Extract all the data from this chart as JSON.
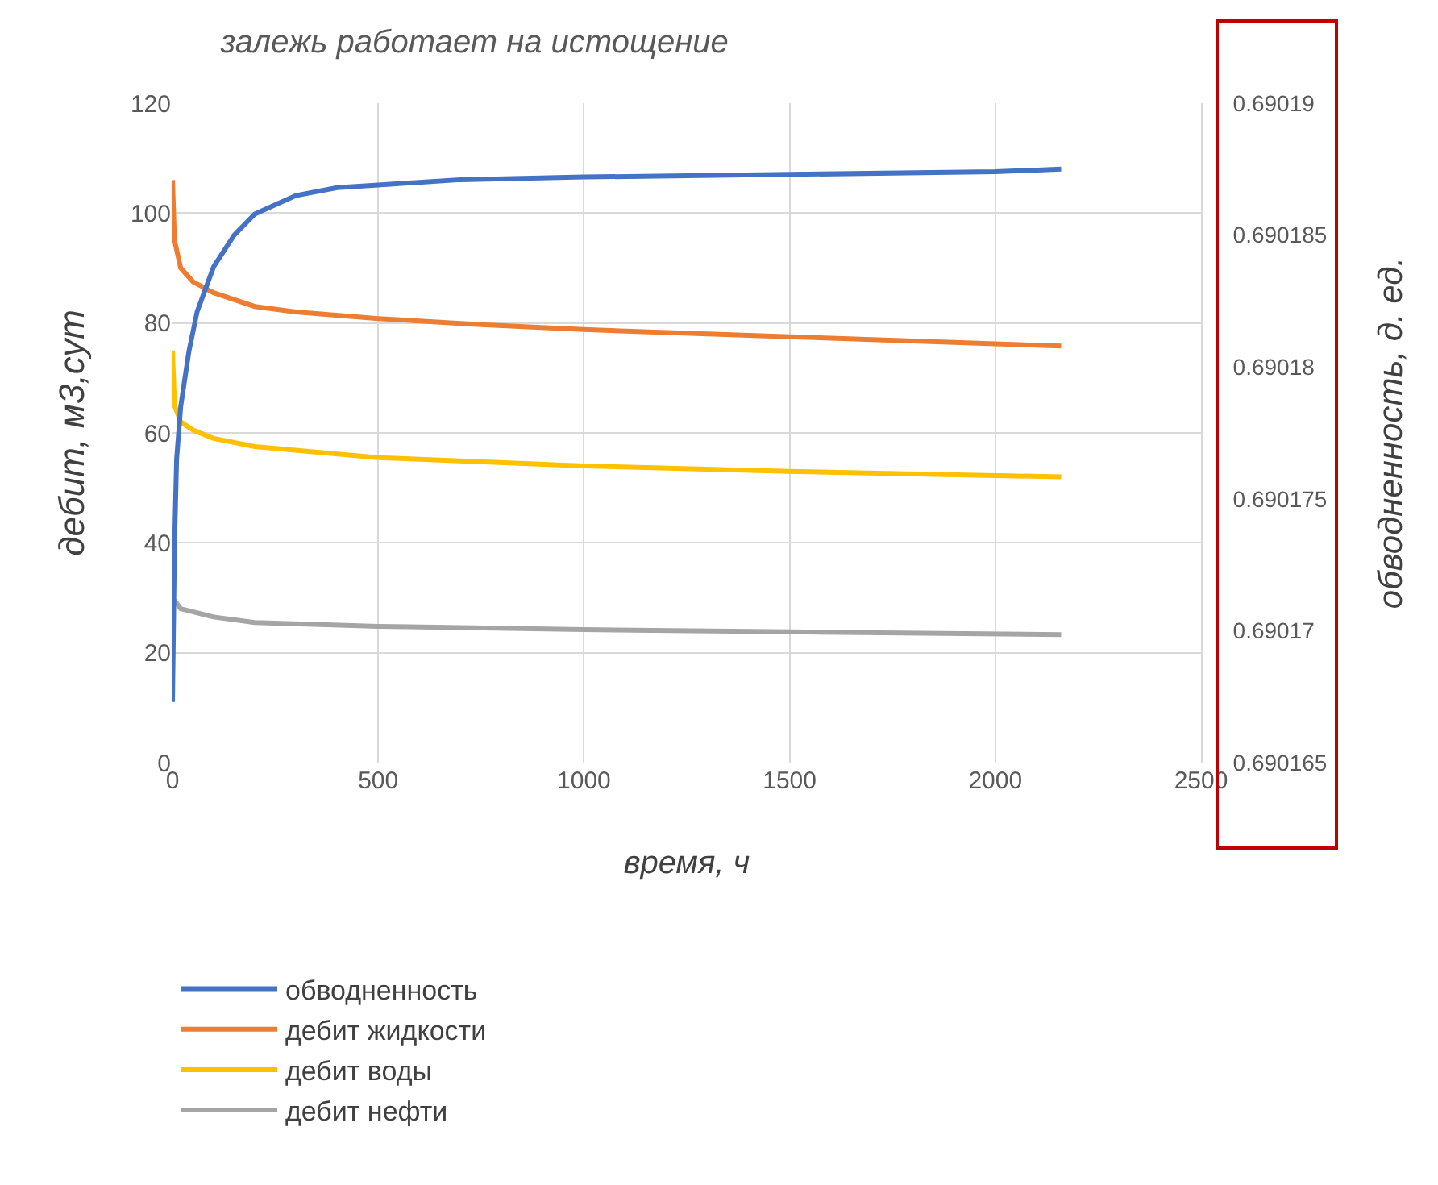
{
  "chart_data": {
    "type": "line",
    "title": "залежь работает на истощение",
    "xlabel": "время, ч",
    "ylabel": "дебит, м3,сут",
    "y2label": "обводненность, д. ед.",
    "xlim": [
      0,
      2500
    ],
    "xticks": [
      0,
      500,
      1000,
      1500,
      2000,
      2500
    ],
    "ylim": [
      0,
      120
    ],
    "yticks": [
      0,
      20,
      40,
      60,
      80,
      100,
      120
    ],
    "y2lim": [
      0.690165,
      0.69019
    ],
    "y2ticks": [
      0.690165,
      0.69017,
      0.690175,
      0.69018,
      0.690185,
      0.69019
    ],
    "grid": true,
    "legend": "bottom",
    "marker": "none",
    "line_style": "solid",
    "series": [
      {
        "name": "обводненность",
        "color": "#4472c4",
        "axis": "y2",
        "x": [
          0,
          5,
          10,
          20,
          40,
          60,
          100,
          150,
          200,
          300,
          400,
          500,
          700,
          1000,
          1500,
          2000,
          2160
        ],
        "values": [
          0.6901673,
          0.6901733,
          0.6901765,
          0.6901785,
          0.6901806,
          0.6901821,
          0.6901838,
          0.690185,
          0.6901858,
          0.6901865,
          0.6901868,
          0.6901869,
          0.6901871,
          0.6901872,
          0.6901873,
          0.6901874,
          0.6901875
        ]
      },
      {
        "name": "дебит жидкости",
        "color": "#ed7d31",
        "x": [
          0,
          5,
          20,
          50,
          100,
          200,
          300,
          500,
          750,
          1000,
          1500,
          2000,
          2160
        ],
        "values": [
          106,
          95,
          90,
          87.5,
          85.5,
          83,
          82,
          80.8,
          79.7,
          78.8,
          77.5,
          76.2,
          75.8
        ]
      },
      {
        "name": "дебит воды",
        "color": "#ffc000",
        "x": [
          0,
          5,
          20,
          50,
          100,
          200,
          500,
          1000,
          1500,
          2160
        ],
        "values": [
          75,
          65,
          62,
          60.5,
          59,
          57.5,
          55.5,
          54,
          53,
          52
        ]
      },
      {
        "name": "дебит нефти",
        "color": "#a5a5a5",
        "x": [
          5,
          20,
          100,
          200,
          500,
          1000,
          1500,
          2160
        ],
        "values": [
          29.5,
          28,
          26.5,
          25.5,
          24.8,
          24.2,
          23.8,
          23.3
        ]
      }
    ]
  }
}
